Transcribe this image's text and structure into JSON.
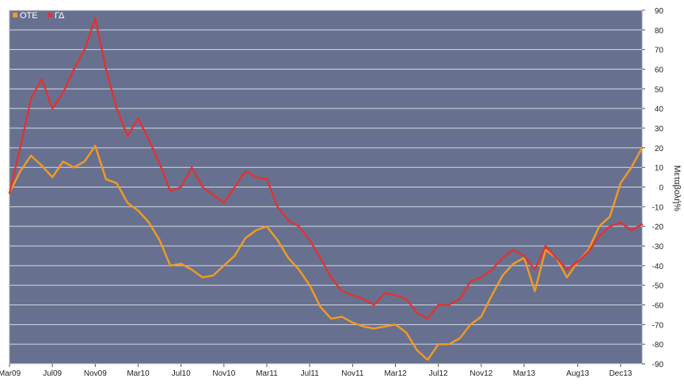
{
  "chart_data": {
    "type": "line",
    "ylabel": "Μεταβολή%",
    "ylim": [
      -90,
      90
    ],
    "yticks": [
      90,
      80,
      70,
      60,
      50,
      40,
      30,
      20,
      10,
      0,
      -10,
      -20,
      -30,
      -40,
      -50,
      -60,
      -70,
      -80,
      -90
    ],
    "grid": true,
    "legend_position": "top-left",
    "xticklabels": [
      "Mar09",
      "Jul09",
      "Nov09",
      "Mar10",
      "Jul10",
      "Nov10",
      "Mar11",
      "Jul11",
      "Nov11",
      "Mar12",
      "Jul12",
      "Nov12",
      "Mar13",
      "Aug13",
      "Dec13"
    ],
    "series": [
      {
        "name": "ΟΤΕ",
        "color": "#f59a1f",
        "values": [
          [
            "Mar09",
            -3
          ],
          [
            "Apr09",
            8
          ],
          [
            "May09",
            16
          ],
          [
            "Jun09",
            11
          ],
          [
            "Jul09",
            5
          ],
          [
            "Aug09",
            13
          ],
          [
            "Sep09",
            10
          ],
          [
            "Oct09",
            13
          ],
          [
            "Nov09",
            21
          ],
          [
            "Dec09",
            4
          ],
          [
            "Jan10",
            2
          ],
          [
            "Feb10",
            -8
          ],
          [
            "Mar10",
            -12
          ],
          [
            "Apr10",
            -18
          ],
          [
            "May10",
            -27
          ],
          [
            "Jun10",
            -40
          ],
          [
            "Jul10",
            -39
          ],
          [
            "Aug10",
            -42
          ],
          [
            "Sep10",
            -46
          ],
          [
            "Oct10",
            -45
          ],
          [
            "Nov10",
            -40
          ],
          [
            "Dec10",
            -35
          ],
          [
            "Jan11",
            -26
          ],
          [
            "Feb11",
            -22
          ],
          [
            "Mar11",
            -20
          ],
          [
            "Apr11",
            -27
          ],
          [
            "May11",
            -36
          ],
          [
            "Jun11",
            -42
          ],
          [
            "Jul11",
            -50
          ],
          [
            "Aug11",
            -61
          ],
          [
            "Sep11",
            -67
          ],
          [
            "Oct11",
            -66
          ],
          [
            "Nov11",
            -69
          ],
          [
            "Dec11",
            -71
          ],
          [
            "Jan12",
            -72
          ],
          [
            "Feb12",
            -71
          ],
          [
            "Mar12",
            -70
          ],
          [
            "Apr12",
            -74
          ],
          [
            "May12",
            -83
          ],
          [
            "Jun12",
            -88
          ],
          [
            "Jul12",
            -80
          ],
          [
            "Aug12",
            -80
          ],
          [
            "Sep12",
            -77
          ],
          [
            "Oct12",
            -70
          ],
          [
            "Nov12",
            -66
          ],
          [
            "Dec12",
            -55
          ],
          [
            "Jan13",
            -45
          ],
          [
            "Feb13",
            -39
          ],
          [
            "Mar13",
            -36
          ],
          [
            "Apr13",
            -53
          ],
          [
            "May13",
            -32
          ],
          [
            "Jun13",
            -36
          ],
          [
            "Jul13",
            -46
          ],
          [
            "Aug13",
            -38
          ],
          [
            "Sep13",
            -32
          ],
          [
            "Oct13",
            -20
          ],
          [
            "Nov13",
            -15
          ],
          [
            "Dec13",
            2
          ],
          [
            "Jan14",
            10
          ],
          [
            "Feb14",
            20
          ]
        ]
      },
      {
        "name": "ΓΔ",
        "color": "#e23232",
        "values": [
          [
            "Mar09",
            -3
          ],
          [
            "Apr09",
            20
          ],
          [
            "May09",
            45
          ],
          [
            "Jun09",
            55
          ],
          [
            "Jul09",
            40
          ],
          [
            "Aug09",
            48
          ],
          [
            "Sep09",
            60
          ],
          [
            "Oct09",
            70
          ],
          [
            "Nov09",
            86
          ],
          [
            "Dec09",
            60
          ],
          [
            "Jan10",
            40
          ],
          [
            "Feb10",
            26
          ],
          [
            "Mar10",
            35
          ],
          [
            "Apr10",
            24
          ],
          [
            "May10",
            12
          ],
          [
            "Jun10",
            -2
          ],
          [
            "Jul10",
            0
          ],
          [
            "Aug10",
            10
          ],
          [
            "Sep10",
            0
          ],
          [
            "Oct10",
            -4
          ],
          [
            "Nov10",
            -8
          ],
          [
            "Dec10",
            0
          ],
          [
            "Jan11",
            8
          ],
          [
            "Feb11",
            5
          ],
          [
            "Mar11",
            4
          ],
          [
            "Apr11",
            -10
          ],
          [
            "May11",
            -17
          ],
          [
            "Jun11",
            -20
          ],
          [
            "Jul11",
            -27
          ],
          [
            "Aug11",
            -36
          ],
          [
            "Sep11",
            -46
          ],
          [
            "Oct11",
            -53
          ],
          [
            "Nov11",
            -55
          ],
          [
            "Dec11",
            -57
          ],
          [
            "Jan12",
            -60
          ],
          [
            "Feb12",
            -54
          ],
          [
            "Mar12",
            -55
          ],
          [
            "Apr12",
            -57
          ],
          [
            "May12",
            -64
          ],
          [
            "Jun12",
            -67
          ],
          [
            "Jul12",
            -60
          ],
          [
            "Aug12",
            -60
          ],
          [
            "Sep12",
            -57
          ],
          [
            "Oct12",
            -48
          ],
          [
            "Nov12",
            -46
          ],
          [
            "Dec12",
            -42
          ],
          [
            "Jan13",
            -36
          ],
          [
            "Feb13",
            -32
          ],
          [
            "Mar13",
            -35
          ],
          [
            "Apr13",
            -42
          ],
          [
            "May13",
            -30
          ],
          [
            "Jun13",
            -36
          ],
          [
            "Jul13",
            -42
          ],
          [
            "Aug13",
            -38
          ],
          [
            "Sep13",
            -33
          ],
          [
            "Oct13",
            -25
          ],
          [
            "Nov13",
            -20
          ],
          [
            "Dec13",
            -18
          ],
          [
            "Jan14",
            -22
          ],
          [
            "Feb14",
            -19
          ]
        ]
      }
    ]
  }
}
